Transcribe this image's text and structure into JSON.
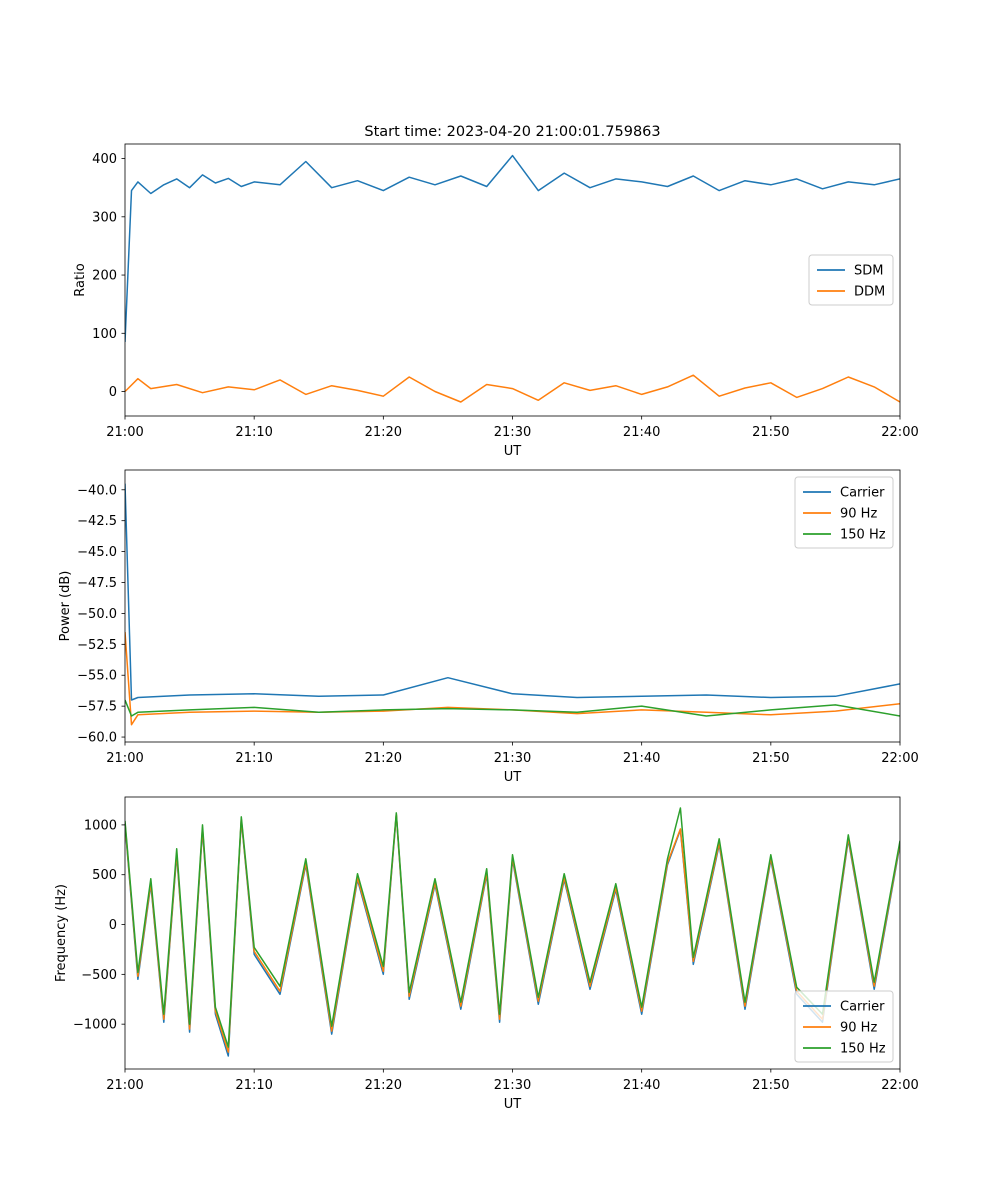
{
  "figure_title": "Start time: 2023-04-20 21:00:01.759863",
  "colors": {
    "blue": "#1f77b4",
    "orange": "#ff7f0e",
    "green": "#2ca02c"
  },
  "chart_data": [
    {
      "type": "line",
      "xlabel": "UT",
      "ylabel": "Ratio",
      "xlim": [
        "21:00",
        "22:00"
      ],
      "ylim": [
        -42,
        425
      ],
      "x_tick_labels": [
        "21:00",
        "21:10",
        "21:20",
        "21:30",
        "21:40",
        "21:50",
        "22:00"
      ],
      "y_ticks": [
        0,
        100,
        200,
        300,
        400
      ],
      "y_tick_labels": [
        "0",
        "100",
        "200",
        "300",
        "400"
      ],
      "legend_position": "center-right",
      "series": [
        {
          "name": "SDM",
          "color": "#1f77b4",
          "x": [
            "21:00",
            "21:00:30",
            "21:01",
            "21:02",
            "21:03",
            "21:04",
            "21:05",
            "21:06",
            "21:07",
            "21:08",
            "21:09",
            "21:10",
            "21:12",
            "21:14",
            "21:16",
            "21:18",
            "21:20",
            "21:22",
            "21:24",
            "21:26",
            "21:28",
            "21:30",
            "21:32",
            "21:34",
            "21:36",
            "21:38",
            "21:40",
            "21:42",
            "21:44",
            "21:46",
            "21:48",
            "21:50",
            "21:52",
            "21:54",
            "21:56",
            "21:58",
            "22:00"
          ],
          "values": [
            85,
            345,
            360,
            340,
            355,
            365,
            350,
            372,
            358,
            366,
            352,
            360,
            355,
            395,
            350,
            362,
            345,
            368,
            355,
            370,
            352,
            405,
            345,
            375,
            350,
            365,
            360,
            352,
            370,
            345,
            362,
            355,
            365,
            348,
            360,
            355,
            365
          ]
        },
        {
          "name": "DDM",
          "color": "#ff7f0e",
          "x": [
            "21:00",
            "21:01",
            "21:02",
            "21:04",
            "21:06",
            "21:08",
            "21:10",
            "21:12",
            "21:14",
            "21:16",
            "21:18",
            "21:20",
            "21:22",
            "21:24",
            "21:26",
            "21:28",
            "21:30",
            "21:32",
            "21:34",
            "21:36",
            "21:38",
            "21:40",
            "21:42",
            "21:44",
            "21:46",
            "21:48",
            "21:50",
            "21:52",
            "21:54",
            "21:56",
            "21:58",
            "22:00"
          ],
          "values": [
            0,
            22,
            5,
            12,
            -2,
            8,
            3,
            20,
            -5,
            10,
            2,
            -8,
            25,
            0,
            -18,
            12,
            5,
            -15,
            15,
            2,
            10,
            -5,
            8,
            28,
            -8,
            6,
            15,
            -10,
            5,
            25,
            8,
            -18
          ]
        }
      ]
    },
    {
      "type": "line",
      "xlabel": "UT",
      "ylabel": "Power (dB)",
      "xlim": [
        "21:00",
        "22:00"
      ],
      "ylim": [
        -60.4,
        -38.4
      ],
      "x_tick_labels": [
        "21:00",
        "21:10",
        "21:20",
        "21:30",
        "21:40",
        "21:50",
        "22:00"
      ],
      "y_ticks": [
        -40,
        -42.5,
        -45,
        -47.5,
        -50,
        -52.5,
        -55,
        -57.5,
        -60
      ],
      "y_tick_labels": [
        "−40.0",
        "−42.5",
        "−45.0",
        "−47.5",
        "−50.0",
        "−52.5",
        "−55.0",
        "−57.5",
        "−60.0"
      ],
      "legend_position": "top-right",
      "series": [
        {
          "name": "Carrier",
          "color": "#1f77b4",
          "x": [
            "21:00",
            "21:00:30",
            "21:01",
            "21:05",
            "21:10",
            "21:15",
            "21:20",
            "21:25",
            "21:30",
            "21:35",
            "21:40",
            "21:45",
            "21:50",
            "21:55",
            "22:00"
          ],
          "values": [
            -39.5,
            -57,
            -56.8,
            -56.6,
            -56.5,
            -56.7,
            -56.6,
            -55.2,
            -56.5,
            -56.8,
            -56.7,
            -56.6,
            -56.8,
            -56.7,
            -55.7
          ]
        },
        {
          "name": "90 Hz",
          "color": "#ff7f0e",
          "x": [
            "21:00",
            "21:00:30",
            "21:01",
            "21:05",
            "21:10",
            "21:15",
            "21:20",
            "21:25",
            "21:30",
            "21:35",
            "21:40",
            "21:45",
            "21:50",
            "21:55",
            "22:00"
          ],
          "values": [
            -51.5,
            -59,
            -58.2,
            -58,
            -57.9,
            -58,
            -57.9,
            -57.6,
            -57.8,
            -58.1,
            -57.8,
            -58,
            -58.2,
            -57.9,
            -57.3
          ]
        },
        {
          "name": "150 Hz",
          "color": "#2ca02c",
          "x": [
            "21:00",
            "21:00:30",
            "21:01",
            "21:05",
            "21:10",
            "21:15",
            "21:20",
            "21:25",
            "21:30",
            "21:35",
            "21:40",
            "21:45",
            "21:50",
            "21:55",
            "22:00"
          ],
          "values": [
            -57,
            -58.3,
            -58,
            -57.8,
            -57.6,
            -58,
            -57.8,
            -57.7,
            -57.8,
            -58,
            -57.5,
            -58.3,
            -57.8,
            -57.4,
            -58.3
          ]
        }
      ]
    },
    {
      "type": "line",
      "xlabel": "UT",
      "ylabel": "Frequency (Hz)",
      "xlim": [
        "21:00",
        "22:00"
      ],
      "ylim": [
        -1450,
        1280
      ],
      "x_tick_labels": [
        "21:00",
        "21:10",
        "21:20",
        "21:30",
        "21:40",
        "21:50",
        "22:00"
      ],
      "y_ticks": [
        1000,
        500,
        0,
        -500,
        -1000
      ],
      "y_tick_labels": [
        "1000",
        "500",
        "0",
        "−500",
        "−1000"
      ],
      "legend_position": "lower-right",
      "series": [
        {
          "name": "Carrier",
          "color": "#1f77b4",
          "x": [
            "21:00",
            "21:01",
            "21:02",
            "21:03",
            "21:04",
            "21:05",
            "21:06",
            "21:07",
            "21:08",
            "21:09",
            "21:10",
            "21:12",
            "21:14",
            "21:16",
            "21:18",
            "21:20",
            "21:21",
            "21:22",
            "21:24",
            "21:26",
            "21:28",
            "21:29",
            "21:30",
            "21:32",
            "21:34",
            "21:36",
            "21:38",
            "21:40",
            "21:42",
            "21:43",
            "21:44",
            "21:46",
            "21:48",
            "21:50",
            "21:52",
            "21:54",
            "21:56",
            "21:58",
            "22:00"
          ],
          "values": [
            1000,
            -550,
            400,
            -980,
            700,
            -1080,
            950,
            -900,
            -1320,
            1050,
            -300,
            -700,
            600,
            -1100,
            450,
            -500,
            1100,
            -750,
            400,
            -850,
            500,
            -980,
            650,
            -800,
            450,
            -650,
            350,
            -900,
            600,
            950,
            -400,
            800,
            -850,
            650,
            -700,
            -980,
            850,
            -650,
            800
          ]
        },
        {
          "name": "90 Hz",
          "color": "#ff7f0e",
          "x": [
            "21:00",
            "21:01",
            "21:02",
            "21:03",
            "21:04",
            "21:05",
            "21:06",
            "21:07",
            "21:08",
            "21:09",
            "21:10",
            "21:12",
            "21:14",
            "21:16",
            "21:18",
            "21:20",
            "21:21",
            "21:22",
            "21:24",
            "21:26",
            "21:28",
            "21:29",
            "21:30",
            "21:32",
            "21:34",
            "21:36",
            "21:38",
            "21:40",
            "21:42",
            "21:43",
            "21:44",
            "21:46",
            "21:48",
            "21:50",
            "21:52",
            "21:54",
            "21:56",
            "21:58",
            "22:00"
          ],
          "values": [
            1020,
            -520,
            420,
            -950,
            720,
            -1050,
            970,
            -870,
            -1280,
            1060,
            -270,
            -670,
            620,
            -1070,
            470,
            -470,
            1110,
            -720,
            420,
            -820,
            520,
            -950,
            670,
            -770,
            470,
            -620,
            370,
            -870,
            620,
            960,
            -370,
            820,
            -820,
            670,
            -670,
            -950,
            870,
            -620,
            820
          ]
        },
        {
          "name": "150 Hz",
          "color": "#2ca02c",
          "x": [
            "21:00",
            "21:01",
            "21:02",
            "21:03",
            "21:04",
            "21:05",
            "21:06",
            "21:07",
            "21:08",
            "21:09",
            "21:10",
            "21:12",
            "21:14",
            "21:16",
            "21:18",
            "21:20",
            "21:21",
            "21:22",
            "21:24",
            "21:26",
            "21:28",
            "21:29",
            "21:30",
            "21:32",
            "21:34",
            "21:36",
            "21:38",
            "21:40",
            "21:42",
            "21:43",
            "21:44",
            "21:46",
            "21:48",
            "21:50",
            "21:52",
            "21:54",
            "21:56",
            "21:58",
            "22:00"
          ],
          "values": [
            1040,
            -480,
            460,
            -900,
            760,
            -1000,
            1000,
            -830,
            -1230,
            1080,
            -230,
            -620,
            660,
            -1020,
            510,
            -420,
            1120,
            -680,
            460,
            -780,
            560,
            -900,
            700,
            -730,
            510,
            -580,
            410,
            -830,
            660,
            1170,
            -330,
            860,
            -780,
            700,
            -630,
            -900,
            900,
            -580,
            840
          ]
        }
      ]
    }
  ]
}
